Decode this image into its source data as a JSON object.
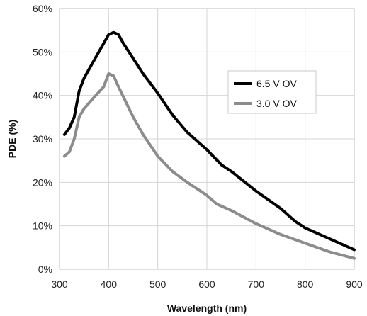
{
  "chart_data": {
    "type": "line",
    "xlabel": "Wavelength (nm)",
    "ylabel": "PDE (%)",
    "xlim": [
      300,
      900
    ],
    "ylim": [
      0,
      60
    ],
    "x_ticks": [
      300,
      400,
      500,
      600,
      700,
      800,
      900
    ],
    "y_ticks": [
      0,
      10,
      20,
      30,
      40,
      50,
      60
    ],
    "x_tick_labels": [
      "300",
      "400",
      "500",
      "600",
      "700",
      "800",
      "900"
    ],
    "y_tick_labels": [
      "0%",
      "10%",
      "20%",
      "30%",
      "40%",
      "50%",
      "60%"
    ],
    "grid": true,
    "legend_position": "right",
    "series": [
      {
        "name": "6.5 V OV",
        "color": "#000000",
        "points": [
          [
            310,
            31
          ],
          [
            320,
            32.5
          ],
          [
            330,
            35
          ],
          [
            340,
            41
          ],
          [
            350,
            44
          ],
          [
            360,
            46
          ],
          [
            370,
            48
          ],
          [
            380,
            50
          ],
          [
            390,
            52
          ],
          [
            400,
            54
          ],
          [
            410,
            54.5
          ],
          [
            420,
            54
          ],
          [
            430,
            52
          ],
          [
            450,
            48.5
          ],
          [
            470,
            45
          ],
          [
            500,
            40.5
          ],
          [
            530,
            35.5
          ],
          [
            560,
            31.5
          ],
          [
            600,
            27.5
          ],
          [
            630,
            24
          ],
          [
            650,
            22.5
          ],
          [
            700,
            18
          ],
          [
            750,
            14
          ],
          [
            780,
            11
          ],
          [
            800,
            9.5
          ],
          [
            850,
            7
          ],
          [
            900,
            4.5
          ]
        ]
      },
      {
        "name": "3.0 V OV",
        "color": "#8c8c8c",
        "points": [
          [
            310,
            26
          ],
          [
            320,
            27
          ],
          [
            330,
            30
          ],
          [
            340,
            35
          ],
          [
            350,
            37
          ],
          [
            370,
            39.5
          ],
          [
            390,
            42
          ],
          [
            400,
            45
          ],
          [
            410,
            44.5
          ],
          [
            420,
            42
          ],
          [
            450,
            35
          ],
          [
            470,
            31
          ],
          [
            500,
            26
          ],
          [
            530,
            22.5
          ],
          [
            560,
            20
          ],
          [
            600,
            17
          ],
          [
            620,
            15
          ],
          [
            650,
            13.5
          ],
          [
            700,
            10.5
          ],
          [
            750,
            8
          ],
          [
            800,
            6
          ],
          [
            850,
            4
          ],
          [
            900,
            2.5
          ]
        ]
      }
    ]
  }
}
